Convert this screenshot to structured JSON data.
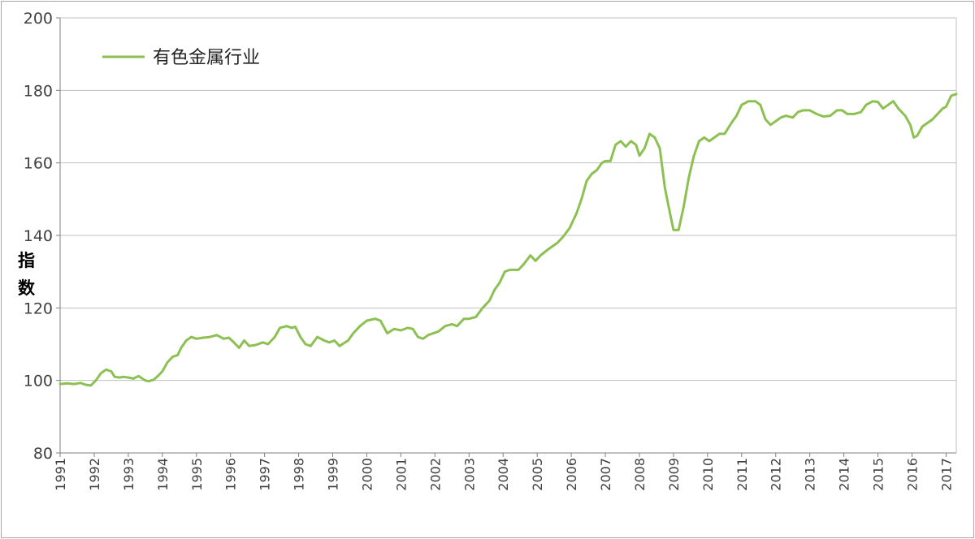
{
  "chart_data": {
    "type": "line",
    "title": "",
    "xlabel": "",
    "ylabel": "指数",
    "ylim": [
      80,
      200
    ],
    "yticks": [
      80,
      100,
      120,
      140,
      160,
      180,
      200
    ],
    "xticks": [
      "1991",
      "1992",
      "1993",
      "1994",
      "1995",
      "1996",
      "1997",
      "1998",
      "1999",
      "2000",
      "2001",
      "2002",
      "2003",
      "2004",
      "2005",
      "2006",
      "2007",
      "2008",
      "2009",
      "2010",
      "2011",
      "2012",
      "2013",
      "2014",
      "2015",
      "2016",
      "2017"
    ],
    "xlim": [
      1991.0,
      2017.3
    ],
    "grid": true,
    "legend_position": "top-left",
    "line_color": "#8cc152",
    "series": [
      {
        "name": "有色金属行业",
        "x": [
          1991.0,
          1991.2,
          1991.4,
          1991.6,
          1991.75,
          1991.9,
          1992.05,
          1992.2,
          1992.35,
          1992.5,
          1992.6,
          1992.75,
          1992.85,
          1993.0,
          1993.15,
          1993.3,
          1993.5,
          1993.6,
          1993.75,
          1993.9,
          1994.0,
          1994.15,
          1994.3,
          1994.45,
          1994.55,
          1994.7,
          1994.85,
          1995.0,
          1995.2,
          1995.4,
          1995.6,
          1995.8,
          1995.95,
          1996.1,
          1996.25,
          1996.4,
          1996.55,
          1996.75,
          1996.95,
          1997.1,
          1997.3,
          1997.45,
          1997.65,
          1997.8,
          1997.9,
          1998.05,
          1998.2,
          1998.35,
          1998.55,
          1998.75,
          1998.9,
          1999.05,
          1999.2,
          1999.45,
          1999.6,
          1999.8,
          2000.0,
          2000.15,
          2000.25,
          2000.4,
          2000.6,
          2000.8,
          2001.0,
          2001.2,
          2001.35,
          2001.5,
          2001.65,
          2001.8,
          2001.95,
          2002.1,
          2002.3,
          2002.5,
          2002.65,
          2002.85,
          2003.0,
          2003.2,
          2003.4,
          2003.6,
          2003.75,
          2003.9,
          2004.05,
          2004.2,
          2004.45,
          2004.6,
          2004.8,
          2004.95,
          2005.1,
          2005.3,
          2005.45,
          2005.6,
          2005.75,
          2005.95,
          2006.05,
          2006.15,
          2006.3,
          2006.45,
          2006.6,
          2006.75,
          2006.9,
          2007.0,
          2007.15,
          2007.3,
          2007.45,
          2007.6,
          2007.75,
          2007.9,
          2008.0,
          2008.15,
          2008.3,
          2008.45,
          2008.6,
          2008.75,
          2008.9,
          2009.0,
          2009.15,
          2009.3,
          2009.45,
          2009.6,
          2009.75,
          2009.9,
          2010.05,
          2010.2,
          2010.35,
          2010.5,
          2010.7,
          2010.85,
          2011.0,
          2011.2,
          2011.4,
          2011.55,
          2011.7,
          2011.85,
          2012.0,
          2012.15,
          2012.3,
          2012.5,
          2012.65,
          2012.8,
          2013.0,
          2013.2,
          2013.4,
          2013.6,
          2013.8,
          2013.95,
          2014.1,
          2014.3,
          2014.5,
          2014.65,
          2014.85,
          2015.0,
          2015.15,
          2015.3,
          2015.45,
          2015.6,
          2015.8,
          2015.95,
          2016.05,
          2016.15,
          2016.3,
          2016.45,
          2016.6,
          2016.75,
          2016.9,
          2017.0,
          2017.15,
          2017.3
        ],
        "y": [
          99,
          99.2,
          99,
          99.3,
          98.8,
          98.6,
          100,
          102,
          103,
          102.5,
          101,
          100.8,
          101,
          100.8,
          100.5,
          101.2,
          100,
          99.8,
          100.2,
          101.5,
          102.5,
          105,
          106.5,
          107,
          109,
          111,
          112,
          111.5,
          111.8,
          112,
          112.5,
          111.5,
          111.8,
          110.5,
          109,
          111,
          109.5,
          109.8,
          110.5,
          110,
          112,
          114.5,
          115,
          114.5,
          114.8,
          112,
          110,
          109.5,
          112,
          111,
          110.5,
          111,
          109.5,
          111,
          113,
          115,
          116.5,
          116.8,
          117,
          116.5,
          113,
          114.2,
          113.8,
          114.5,
          114.2,
          112,
          111.5,
          112.5,
          113,
          113.5,
          115,
          115.5,
          115,
          117,
          117,
          117.5,
          120,
          122,
          125,
          127,
          130,
          130.5,
          130.5,
          132,
          134.5,
          133,
          134.5,
          136,
          137,
          138,
          139.5,
          142,
          144,
          146,
          150,
          155,
          157,
          158,
          160,
          160.5,
          160.5,
          165,
          166,
          164.5,
          166,
          165,
          162,
          164,
          168,
          167,
          164,
          153,
          146,
          141.5,
          141.5,
          148,
          156,
          162,
          166,
          167,
          166,
          167,
          168,
          168,
          171,
          173,
          176,
          177,
          177,
          176,
          172,
          170.5,
          171.5,
          172.5,
          173,
          172.5,
          174,
          174.5,
          174.5,
          173.5,
          172.8,
          173,
          174.5,
          174.5,
          173.5,
          173.5,
          174,
          176,
          177,
          176.8,
          175,
          176,
          177,
          175,
          173,
          170.5,
          167,
          167.5,
          170,
          171,
          172,
          173.5,
          175,
          175.5,
          178.5,
          179
        ]
      }
    ]
  }
}
